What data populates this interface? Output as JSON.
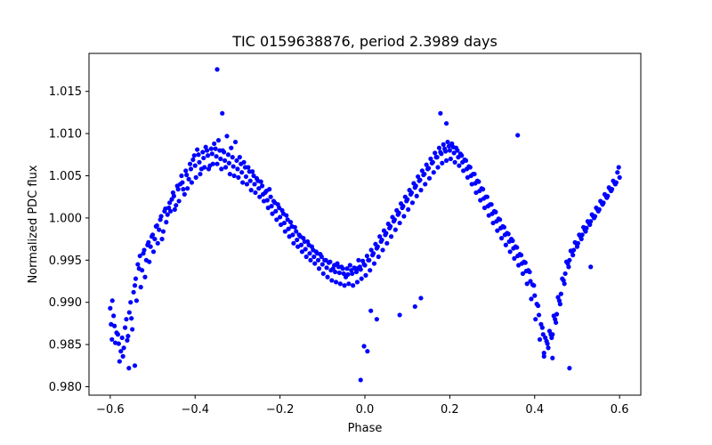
{
  "chart_data": {
    "type": "scatter",
    "title": "TIC 0159638876, period 2.3989 days",
    "xlabel": "Phase",
    "ylabel": "Normalized PDC flux",
    "xlim": [
      -0.65,
      0.65
    ],
    "ylim": [
      0.979,
      1.0195
    ],
    "xticks": [
      -0.6,
      -0.4,
      -0.2,
      0.0,
      0.2,
      0.4,
      0.6
    ],
    "xtick_labels": [
      "−0.6",
      "−0.4",
      "−0.2",
      "0.0",
      "0.2",
      "0.4",
      "0.6"
    ],
    "yticks": [
      0.98,
      0.985,
      0.99,
      0.995,
      1.0,
      1.005,
      1.01,
      1.015
    ],
    "ytick_labels": [
      "0.980",
      "0.985",
      "0.990",
      "0.995",
      "1.000",
      "1.005",
      "1.010",
      "1.015"
    ],
    "grid": false,
    "legend": "none",
    "marker_color": "#0000ff",
    "series": [
      {
        "x": [
          -0.6,
          -0.59,
          -0.58,
          -0.57,
          -0.56,
          -0.55,
          -0.54,
          -0.53,
          -0.52,
          -0.51,
          -0.5,
          -0.49,
          -0.48,
          -0.47,
          -0.46,
          -0.45,
          -0.44,
          -0.43,
          -0.42,
          -0.41,
          -0.4,
          -0.39,
          -0.38,
          -0.37,
          -0.36,
          -0.35,
          -0.34,
          -0.33,
          -0.32,
          -0.31,
          -0.3,
          -0.29,
          -0.28,
          -0.27,
          -0.26,
          -0.25,
          -0.24,
          -0.23,
          -0.22,
          -0.21,
          -0.2,
          -0.19,
          -0.18,
          -0.17,
          -0.16,
          -0.15,
          -0.14,
          -0.13,
          -0.12,
          -0.11,
          -0.1,
          -0.09,
          -0.08,
          -0.07,
          -0.06,
          -0.05,
          -0.04,
          -0.03,
          -0.02,
          -0.01,
          0.0,
          0.01,
          0.02,
          0.03,
          0.04,
          0.05,
          0.06,
          0.07,
          0.08,
          0.09,
          0.1,
          0.11,
          0.12,
          0.13,
          0.14,
          0.15,
          0.16,
          0.17,
          0.18,
          0.19,
          0.2,
          0.21,
          0.22,
          0.23,
          0.24,
          0.25,
          0.26,
          0.27,
          0.28,
          0.29,
          0.3,
          0.31,
          0.32,
          0.33,
          0.34,
          0.35,
          0.36,
          0.37,
          0.38,
          0.39,
          0.4,
          0.41,
          0.42,
          0.43,
          0.44,
          0.45,
          0.46,
          0.47,
          0.48,
          0.49,
          0.5,
          0.51,
          0.52,
          0.53,
          0.54,
          0.55,
          0.56,
          0.57,
          0.58,
          0.59,
          0.6,
          -0.595,
          -0.585,
          -0.575,
          -0.565,
          -0.555,
          -0.545,
          -0.535,
          -0.525,
          -0.515,
          -0.505,
          -0.495,
          -0.485,
          -0.475,
          -0.465,
          -0.455,
          -0.445,
          -0.435,
          -0.425,
          -0.415,
          -0.405,
          -0.395,
          -0.385,
          -0.375,
          -0.365,
          -0.355,
          -0.345,
          -0.335,
          -0.325,
          -0.315,
          -0.305,
          -0.295,
          -0.285,
          -0.275,
          -0.265,
          -0.255,
          -0.245,
          -0.235,
          -0.225,
          -0.215,
          -0.205,
          -0.195,
          -0.185,
          -0.175,
          -0.165,
          -0.155,
          -0.145,
          -0.135,
          -0.125,
          -0.115,
          -0.105,
          -0.095,
          -0.085,
          -0.075,
          -0.065,
          -0.055,
          -0.045,
          -0.035,
          -0.025,
          -0.015,
          -0.005,
          0.005,
          0.015,
          0.025,
          0.035,
          0.045,
          0.055,
          0.065,
          0.075,
          0.085,
          0.095,
          0.105,
          0.115,
          0.125,
          0.135,
          0.145,
          0.155,
          0.165,
          0.175,
          0.185,
          0.195,
          0.205,
          0.215,
          0.225,
          0.235,
          0.245,
          0.255,
          0.265,
          0.275,
          0.285,
          0.295,
          0.305,
          0.315,
          0.325,
          0.335,
          0.345,
          0.355,
          0.365,
          0.375,
          0.385,
          0.395,
          0.405,
          0.415,
          0.425,
          0.435,
          0.445,
          0.455,
          0.465,
          0.475,
          0.485,
          0.495,
          0.505,
          0.515,
          0.525,
          0.535,
          0.545,
          0.555,
          0.565,
          0.575,
          0.585,
          0.595,
          -0.598,
          -0.588,
          -0.578,
          -0.568,
          -0.558,
          -0.548,
          -0.538,
          -0.528,
          -0.518,
          -0.508,
          -0.498,
          -0.488,
          -0.478,
          -0.468,
          -0.458,
          -0.448,
          -0.438,
          -0.428,
          -0.418,
          -0.408,
          -0.398,
          -0.388,
          -0.378,
          -0.368,
          -0.358,
          -0.348,
          -0.338,
          -0.328,
          -0.318,
          -0.308,
          -0.298,
          -0.288,
          -0.278,
          -0.268,
          -0.258,
          -0.248,
          -0.238,
          -0.228,
          -0.218,
          -0.208,
          -0.198,
          -0.188,
          -0.178,
          -0.168,
          -0.158,
          -0.148,
          -0.138,
          -0.128,
          -0.118,
          -0.108,
          -0.098,
          -0.088,
          -0.078,
          -0.068,
          -0.058,
          -0.048,
          -0.038,
          -0.028,
          -0.018,
          -0.008,
          0.002,
          0.012,
          0.022,
          0.032,
          0.042,
          0.052,
          0.062,
          0.072,
          0.082,
          0.092,
          0.102,
          0.112,
          0.122,
          0.132,
          0.142,
          0.152,
          0.162,
          0.172,
          0.182,
          0.192,
          0.202,
          0.212,
          0.222,
          0.232,
          0.242,
          0.252,
          0.262,
          0.272,
          0.282,
          0.292,
          0.302,
          0.312,
          0.322,
          0.332,
          0.342,
          0.352,
          0.362,
          0.372,
          0.382,
          0.392,
          0.402,
          0.412,
          0.422,
          0.432,
          0.442,
          0.452,
          0.462,
          0.472,
          0.482,
          0.492,
          0.502,
          0.512,
          0.522,
          0.532,
          0.542,
          0.552,
          0.562,
          0.572,
          0.582,
          0.592,
          -0.592,
          -0.582,
          -0.572,
          -0.562,
          -0.552,
          -0.542,
          -0.532,
          -0.522,
          -0.512,
          -0.502,
          -0.492,
          -0.482,
          -0.472,
          -0.462,
          -0.452,
          -0.442,
          -0.432,
          -0.422,
          -0.412,
          -0.402,
          -0.392,
          -0.382,
          -0.372,
          -0.362,
          -0.352,
          -0.342,
          -0.332,
          -0.322,
          -0.312,
          -0.302,
          -0.292,
          -0.282,
          -0.272,
          -0.262,
          -0.252,
          -0.242,
          -0.232,
          -0.222,
          -0.212,
          -0.202,
          -0.192,
          -0.182,
          -0.172,
          -0.162,
          -0.152,
          -0.142,
          -0.132,
          -0.122,
          -0.112,
          -0.102,
          -0.092,
          -0.082,
          -0.072,
          -0.062,
          -0.052,
          -0.042,
          -0.032,
          -0.022,
          -0.012,
          -0.002,
          0.008,
          0.018,
          0.028,
          0.038,
          0.048,
          0.058,
          0.068,
          0.078,
          0.088,
          0.098,
          0.108,
          0.118,
          0.128,
          0.138,
          0.148,
          0.158,
          0.168,
          0.178,
          0.188,
          0.198,
          0.208,
          0.218,
          0.228,
          0.238,
          0.248,
          0.258,
          0.268,
          0.278,
          0.288,
          0.298,
          0.308,
          0.318,
          0.328,
          0.338,
          0.348,
          0.358,
          0.368,
          0.378,
          0.388,
          0.398,
          0.408,
          0.418,
          0.428,
          0.438,
          0.448,
          0.458,
          0.468,
          0.478,
          0.488,
          0.498,
          0.508,
          0.518,
          0.528,
          0.538,
          0.548,
          0.558,
          0.568,
          0.578,
          0.588,
          0.598,
          -0.348,
          -0.336,
          0.178,
          0.192,
          -0.01,
          -0.002,
          0.006,
          -0.596,
          -0.556,
          -0.542,
          0.422,
          0.442,
          0.482,
          0.36,
          0.532,
          -0.018,
          0.014,
          0.028,
          0.082,
          0.118,
          0.132
        ],
        "y": [
          0.9893,
          0.9872,
          0.9851,
          0.9836,
          0.9855,
          0.9881,
          0.9928,
          0.9955,
          0.9962,
          0.9971,
          0.998,
          0.9991,
          1.0002,
          1.0011,
          1.0018,
          1.0026,
          1.0034,
          1.0042,
          1.0051,
          1.0058,
          1.0062,
          1.0066,
          1.0071,
          1.0074,
          1.0076,
          1.0073,
          1.007,
          1.0068,
          1.0065,
          1.0061,
          1.0058,
          1.0054,
          1.0049,
          1.0044,
          1.004,
          1.0035,
          1.0028,
          1.0021,
          1.0014,
          1.0008,
          1.0001,
          0.9994,
          0.9987,
          0.998,
          0.9974,
          0.9968,
          0.9963,
          0.9958,
          0.9954,
          0.995,
          0.9945,
          0.9941,
          0.9938,
          0.9936,
          0.9935,
          0.9934,
          0.9933,
          0.9934,
          0.9936,
          0.9939,
          0.9944,
          0.995,
          0.9958,
          0.9966,
          0.9974,
          0.9982,
          0.999,
          0.9998,
          1.0006,
          1.0014,
          1.0022,
          1.003,
          1.0038,
          1.0045,
          1.0052,
          1.0059,
          1.0066,
          1.0072,
          1.0076,
          1.0079,
          1.008,
          1.0077,
          1.0072,
          1.0066,
          1.0058,
          1.005,
          1.0041,
          1.0032,
          1.0023,
          1.0014,
          1.0005,
          0.9996,
          0.9988,
          0.998,
          0.9972,
          0.9964,
          0.9955,
          0.9946,
          0.9937,
          0.9925,
          0.9908,
          0.9885,
          0.9862,
          0.9851,
          0.9858,
          0.9876,
          0.9898,
          0.9922,
          0.9942,
          0.9956,
          0.9966,
          0.9975,
          0.9984,
          0.9992,
          1.0,
          1.0008,
          1.0016,
          1.0024,
          1.0032,
          1.004,
          1.0048,
          0.9902,
          0.9864,
          0.9842,
          0.987,
          0.9888,
          0.9912,
          0.9945,
          0.9938,
          0.995,
          0.9966,
          0.9975,
          0.9986,
          0.9984,
          1.0004,
          1.0022,
          1.0015,
          1.004,
          1.0028,
          1.0046,
          1.0069,
          1.0081,
          1.0058,
          1.0084,
          1.0062,
          1.0088,
          1.0092,
          1.008,
          1.0097,
          1.0083,
          1.009,
          1.0072,
          1.0066,
          1.006,
          1.0055,
          1.0047,
          1.0043,
          1.003,
          1.0034,
          1.002,
          1.0016,
          1.0009,
          1.0003,
          0.9995,
          0.9989,
          0.998,
          0.9976,
          0.9972,
          0.9966,
          0.996,
          0.9957,
          0.995,
          0.9947,
          0.994,
          0.9946,
          0.9942,
          0.993,
          0.9944,
          0.9941,
          0.995,
          0.9949,
          0.9955,
          0.9962,
          0.9969,
          0.9978,
          0.9985,
          0.9993,
          1.0001,
          1.0009,
          1.0017,
          1.0025,
          1.0033,
          1.0041,
          1.0049,
          1.0056,
          1.0063,
          1.007,
          1.0077,
          1.0083,
          1.0087,
          1.009,
          1.0088,
          1.0083,
          1.0076,
          1.0069,
          1.0061,
          1.0052,
          1.0044,
          1.0035,
          1.0025,
          1.0016,
          1.0008,
          0.9999,
          0.999,
          0.9982,
          0.9975,
          0.9966,
          0.9957,
          0.9948,
          0.9938,
          0.9921,
          0.9898,
          0.9874,
          0.9858,
          0.9866,
          0.9884,
          0.9906,
          0.9928,
          0.9948,
          0.9961,
          0.9971,
          0.998,
          0.9989,
          0.9996,
          1.0004,
          1.0012,
          1.002,
          1.0028,
          1.0036,
          1.0044,
          1.0054,
          0.9874,
          0.9852,
          0.983,
          0.9846,
          0.986,
          0.9868,
          0.9902,
          0.9918,
          0.993,
          0.9948,
          0.996,
          0.997,
          0.9975,
          0.9995,
          1.0008,
          1.001,
          1.002,
          1.0034,
          1.0035,
          1.0042,
          1.0048,
          1.0052,
          1.006,
          1.0058,
          1.0064,
          1.0064,
          1.0058,
          1.006,
          1.0052,
          1.005,
          1.0048,
          1.0042,
          1.004,
          1.0033,
          1.003,
          1.0025,
          1.002,
          1.0012,
          1.0005,
          0.9998,
          0.9992,
          0.9984,
          0.9978,
          0.997,
          0.9966,
          0.996,
          0.9954,
          0.995,
          0.9946,
          0.994,
          0.9934,
          0.993,
          0.9926,
          0.9924,
          0.9922,
          0.992,
          0.9922,
          0.992,
          0.9924,
          0.9928,
          0.9932,
          0.9938,
          0.9946,
          0.9954,
          0.9962,
          0.997,
          0.9978,
          0.9986,
          0.9994,
          1.0002,
          1.001,
          1.0018,
          1.0026,
          1.0033,
          1.004,
          1.0047,
          1.0054,
          1.006,
          1.0065,
          1.0068,
          1.007,
          1.0066,
          1.0062,
          1.0056,
          1.0048,
          1.004,
          1.003,
          1.0021,
          1.0012,
          1.0003,
          0.9994,
          0.9985,
          0.9976,
          0.9968,
          0.996,
          0.9952,
          0.9944,
          0.9934,
          0.9922,
          0.9904,
          0.988,
          0.9856,
          0.984,
          0.9846,
          0.9862,
          0.9886,
          0.991,
          0.9934,
          0.995,
          0.9962,
          0.997,
          0.998,
          0.9988,
          0.9996,
          1.0002,
          1.001,
          1.0018,
          1.0026,
          1.0034,
          1.0042,
          0.9884,
          0.9862,
          0.9858,
          0.988,
          0.99,
          0.992,
          0.994,
          0.9958,
          0.9968,
          0.9978,
          0.999,
          0.9998,
          1.0008,
          1.0012,
          1.003,
          1.0038,
          1.005,
          1.0056,
          1.0064,
          1.0074,
          1.0075,
          1.0078,
          1.008,
          1.0082,
          1.0082,
          1.008,
          1.0078,
          1.0075,
          1.0072,
          1.0068,
          1.0064,
          1.006,
          1.0055,
          1.005,
          1.0044,
          1.0038,
          1.0032,
          1.0025,
          1.0018,
          1.0012,
          1.0005,
          0.9998,
          0.999,
          0.9984,
          0.9978,
          0.9972,
          0.9968,
          0.9962,
          0.9958,
          0.9954,
          0.995,
          0.9948,
          0.9944,
          0.9942,
          0.994,
          0.994,
          0.9938,
          0.994,
          0.9942,
          0.9945,
          0.995,
          0.9956,
          0.9964,
          0.9972,
          0.998,
          0.9988,
          0.9996,
          1.0004,
          1.0012,
          1.002,
          1.0028,
          1.0036,
          1.0044,
          1.0051,
          1.0058,
          1.0065,
          1.0072,
          1.0078,
          1.0082,
          1.0085,
          1.0084,
          1.008,
          1.0074,
          1.0068,
          1.006,
          1.0052,
          1.0043,
          1.0034,
          1.0025,
          1.0016,
          1.0007,
          0.9998,
          0.9989,
          0.9981,
          0.9973,
          0.9965,
          0.9956,
          0.9947,
          0.9936,
          0.992,
          0.9896,
          0.987,
          0.9854,
          0.9862,
          0.988,
          0.9902,
          0.9926,
          0.9946,
          0.996,
          0.997,
          0.9978,
          0.9986,
          0.9994,
          1.0002,
          1.001,
          1.0018,
          1.0026,
          1.0034,
          1.0042,
          1.006,
          1.0176,
          1.0124,
          1.0124,
          1.0112,
          0.9808,
          0.9848,
          0.9842,
          0.9856,
          0.9822,
          0.9825,
          0.9836,
          0.9834,
          0.9822,
          1.0098,
          0.9942,
          0.994,
          0.989,
          0.988,
          0.9885,
          0.9895,
          0.9905
        ]
      }
    ]
  }
}
